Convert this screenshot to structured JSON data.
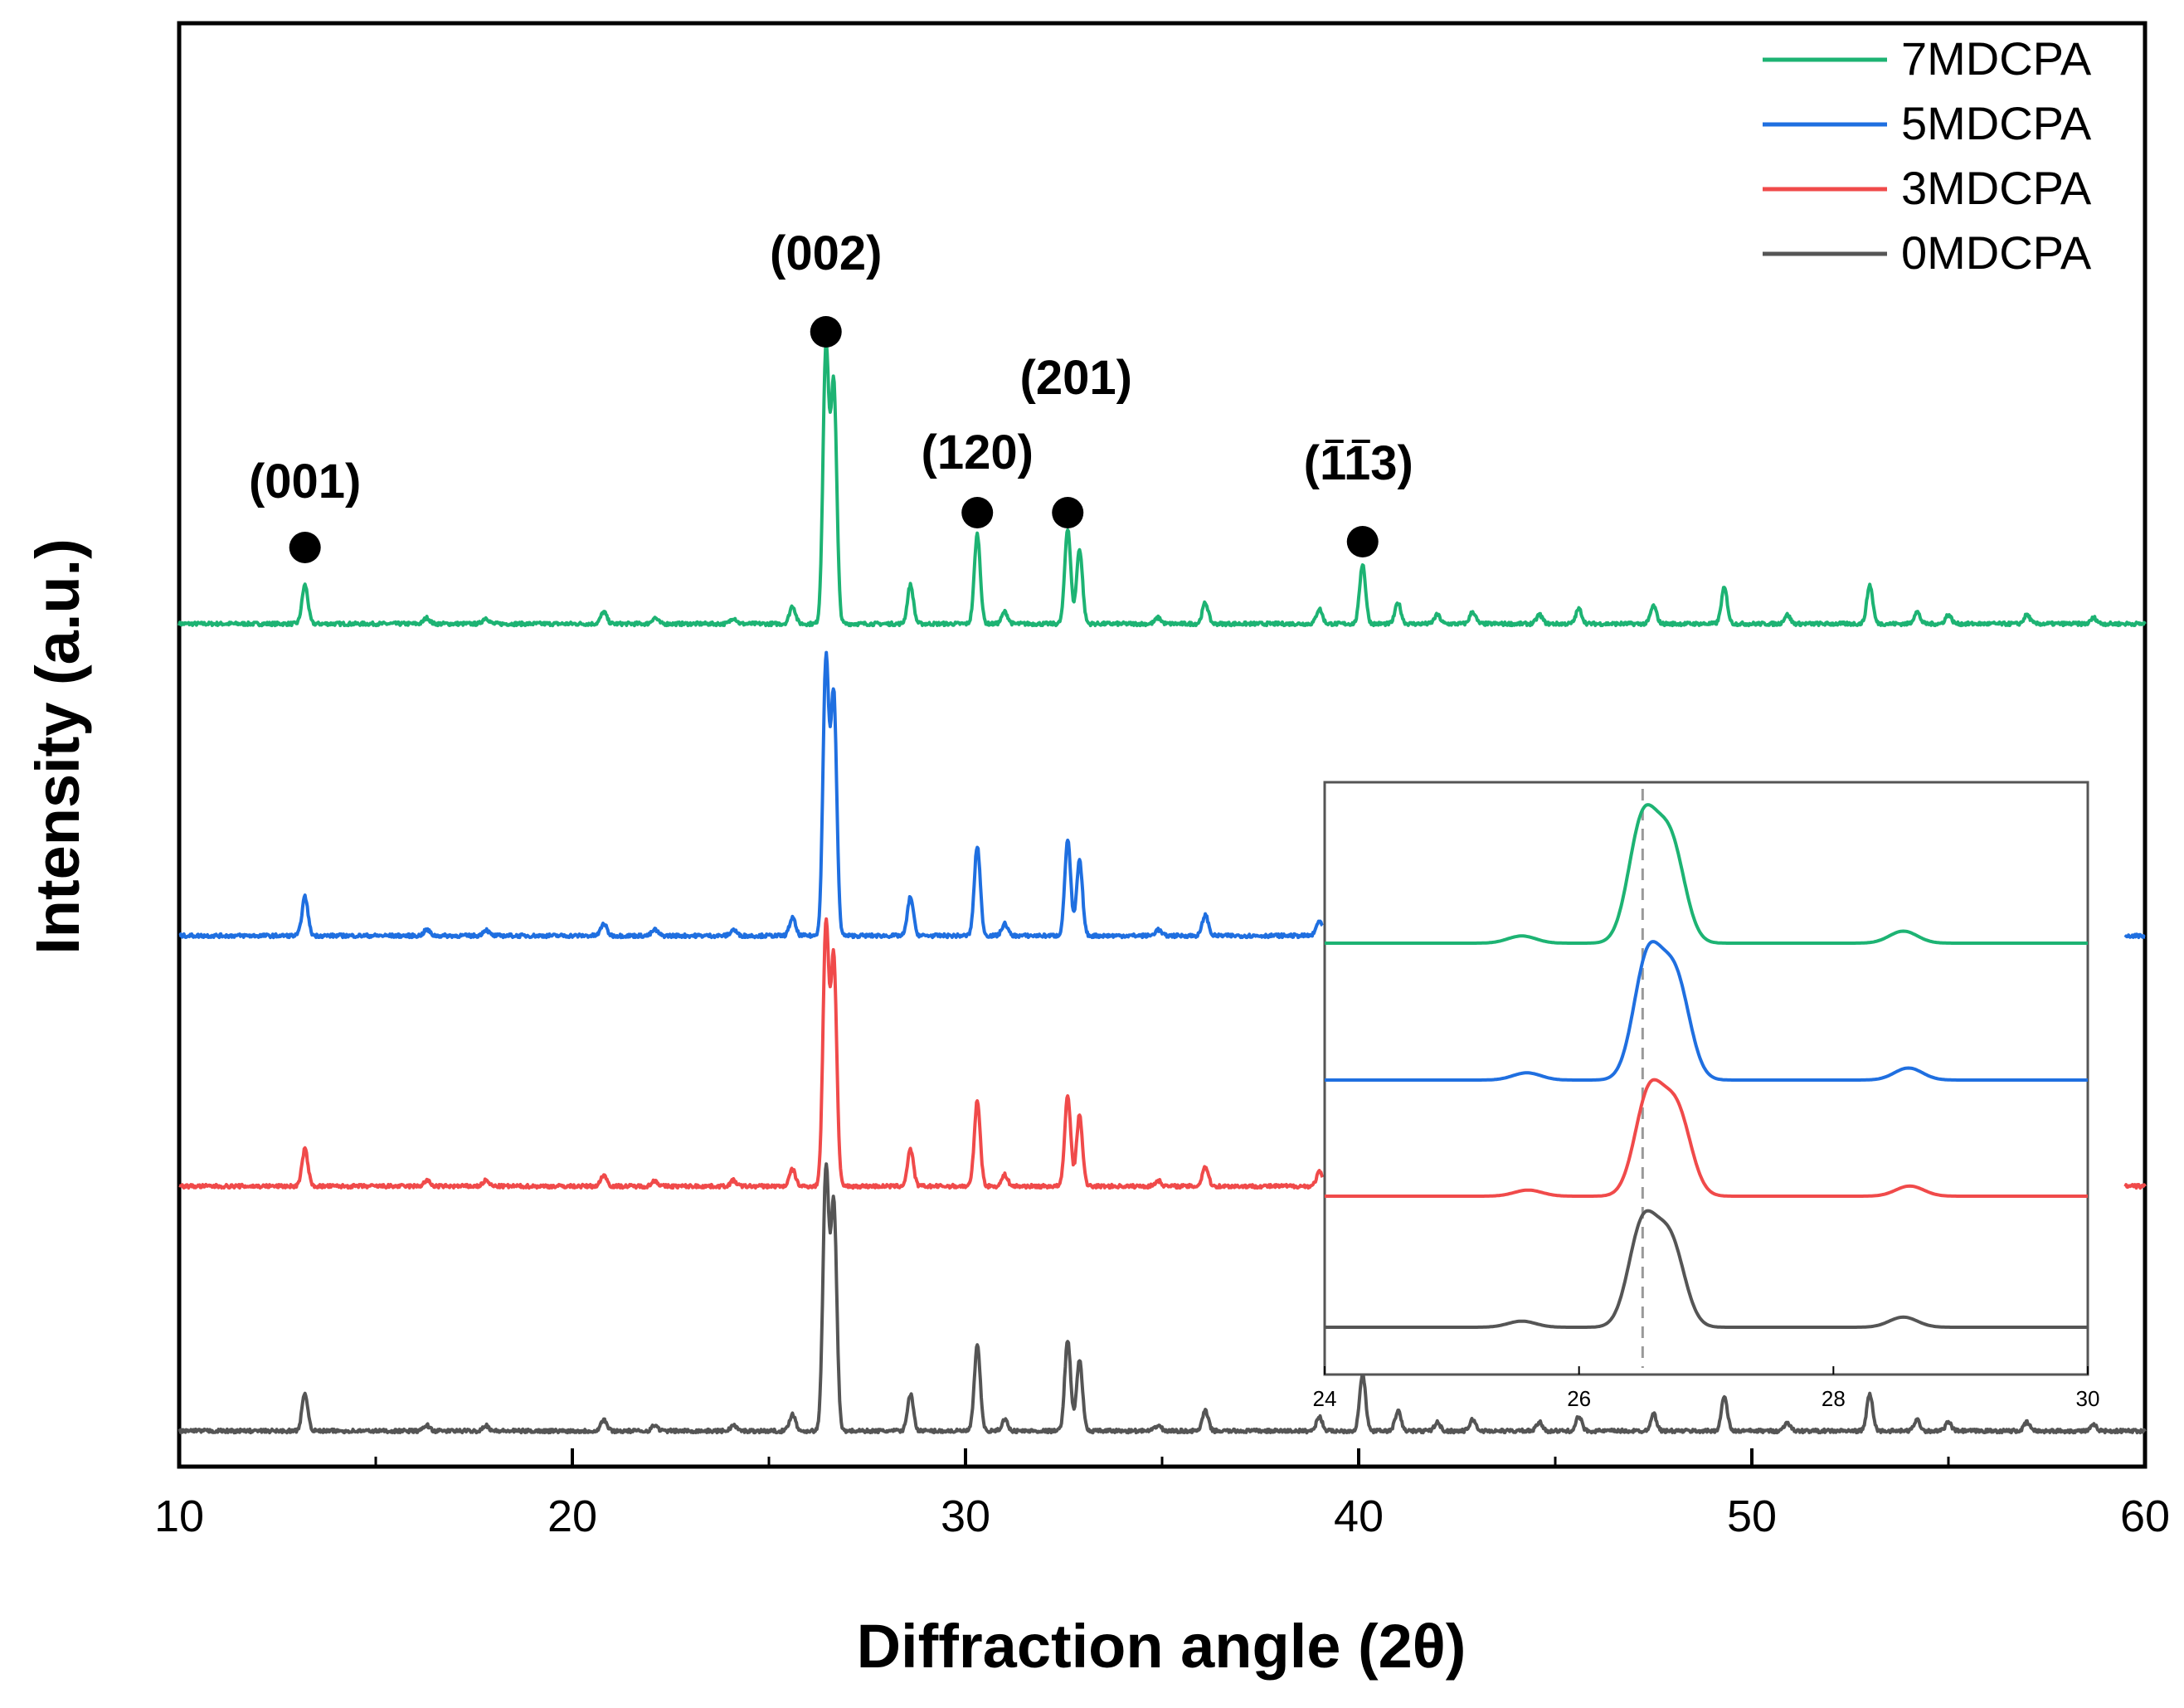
{
  "chart_data": {
    "type": "line",
    "title": "",
    "xlabel": "Diffraction angle (2θ)",
    "ylabel": "Intensity (a.u.)",
    "xlim": [
      10,
      60
    ],
    "xticks": [
      "10",
      "20",
      "30",
      "40",
      "50",
      "60"
    ],
    "grid": false,
    "legend_position": "top-right",
    "colors": {
      "7MDCPA": "#1db373",
      "5MDCPA": "#1f6fe0",
      "3MDCPA": "#f04a4a",
      "0MDCPA": "#555555"
    },
    "series": [
      {
        "name": "7MDCPA",
        "color": "#1db373",
        "baseline": 3.0,
        "peak_scale": 1.0
      },
      {
        "name": "5MDCPA",
        "color": "#1f6fe0",
        "baseline": 2.0,
        "peak_scale": 1.0
      },
      {
        "name": "3MDCPA",
        "color": "#f04a4a",
        "baseline": 1.0,
        "peak_scale": 0.95
      },
      {
        "name": "0MDCPA",
        "color": "#555555",
        "baseline": 0.0,
        "peak_scale": 0.95
      }
    ],
    "peaks": [
      {
        "x": 13.2,
        "h": 0.13
      },
      {
        "x": 16.3,
        "h": 0.02
      },
      {
        "x": 17.8,
        "h": 0.02
      },
      {
        "x": 20.8,
        "h": 0.04
      },
      {
        "x": 22.1,
        "h": 0.02
      },
      {
        "x": 24.1,
        "h": 0.02
      },
      {
        "x": 25.6,
        "h": 0.06
      },
      {
        "x": 26.45,
        "h": 0.92
      },
      {
        "x": 26.65,
        "h": 0.8
      },
      {
        "x": 28.6,
        "h": 0.13
      },
      {
        "x": 30.3,
        "h": 0.3
      },
      {
        "x": 31.0,
        "h": 0.04
      },
      {
        "x": 32.6,
        "h": 0.32
      },
      {
        "x": 32.9,
        "h": 0.25
      },
      {
        "x": 34.9,
        "h": 0.02
      },
      {
        "x": 36.1,
        "h": 0.07
      },
      {
        "x": 39.0,
        "h": 0.05
      },
      {
        "x": 40.1,
        "h": 0.2
      },
      {
        "x": 41.0,
        "h": 0.07
      },
      {
        "x": 42.0,
        "h": 0.03
      },
      {
        "x": 42.9,
        "h": 0.04
      },
      {
        "x": 44.6,
        "h": 0.03
      },
      {
        "x": 45.6,
        "h": 0.05
      },
      {
        "x": 47.5,
        "h": 0.06
      },
      {
        "x": 49.3,
        "h": 0.12
      },
      {
        "x": 50.9,
        "h": 0.03
      },
      {
        "x": 53.0,
        "h": 0.13
      },
      {
        "x": 54.2,
        "h": 0.04
      },
      {
        "x": 55.0,
        "h": 0.03
      },
      {
        "x": 57.0,
        "h": 0.03
      },
      {
        "x": 58.7,
        "h": 0.02
      }
    ],
    "annotations": [
      {
        "label": "(001)",
        "x": 13.2
      },
      {
        "label": "(002)",
        "x": 26.45
      },
      {
        "label": "(120)",
        "x": 30.3
      },
      {
        "label": "(201)",
        "x": 32.6
      },
      {
        "label": "(̅1̅1​3)",
        "x": 40.1,
        "display": "(113)",
        "overbar_digits": [
          1,
          2
        ]
      }
    ],
    "inset": {
      "type": "line",
      "xlim": [
        24,
        30
      ],
      "xticks": [
        "24",
        "26",
        "28",
        "30"
      ],
      "reference_line_x": 26.5,
      "peaks": [
        {
          "x": 25.55,
          "h": 0.06
        },
        {
          "x": 26.5,
          "h": 1.0
        },
        {
          "x": 26.72,
          "h": 0.82
        },
        {
          "x": 28.55,
          "h": 0.1
        }
      ]
    }
  }
}
